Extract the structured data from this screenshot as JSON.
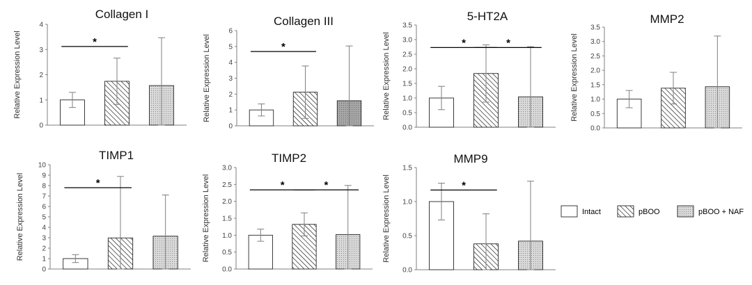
{
  "chart_data": [
    {
      "type": "bar",
      "title": "Collagen I",
      "ylabel": "Relative Expression Level",
      "ylim": [
        0,
        4
      ],
      "ytick_step": 1,
      "tick_decimals": 0,
      "categories": [
        "Intact",
        "pBOO",
        "pBOO + NAF"
      ],
      "values": [
        1.0,
        1.74,
        1.57
      ],
      "errors": [
        0.3,
        0.92,
        1.9
      ],
      "significance": [
        {
          "from": 0,
          "to": 1,
          "label": "*"
        }
      ]
    },
    {
      "type": "bar",
      "title": "Collagen III",
      "ylabel": "Relative Expression Level",
      "ylim": [
        0,
        6
      ],
      "ytick_step": 1,
      "tick_decimals": 0,
      "categories": [
        "Intact",
        "pBOO",
        "pBOO + NAF"
      ],
      "values": [
        1.0,
        2.12,
        1.58
      ],
      "errors": [
        0.38,
        1.65,
        3.45
      ],
      "significance": [
        {
          "from": 0,
          "to": 1,
          "label": "*"
        }
      ]
    },
    {
      "type": "bar",
      "title": "5-HT2A",
      "ylabel": "Relative Expression Level",
      "ylim": [
        0,
        3.5
      ],
      "ytick_step": 0.5,
      "tick_decimals": 1,
      "categories": [
        "Intact",
        "pBOO",
        "pBOO + NAF"
      ],
      "values": [
        1.0,
        1.84,
        1.04
      ],
      "errors": [
        0.4,
        0.98,
        1.72
      ],
      "significance": [
        {
          "from": 0,
          "to": 1,
          "label": "*"
        },
        {
          "from": 1,
          "to": 2,
          "label": "*"
        }
      ]
    },
    {
      "type": "bar",
      "title": "MMP2",
      "ylabel": "Relative Expression Level",
      "ylim": [
        0,
        3.5
      ],
      "ytick_step": 0.5,
      "tick_decimals": 1,
      "categories": [
        "Intact",
        "pBOO",
        "pBOO + NAF"
      ],
      "values": [
        1.0,
        1.38,
        1.43
      ],
      "errors": [
        0.3,
        0.55,
        1.76
      ],
      "significance": []
    },
    {
      "type": "bar",
      "title": "TIMP1",
      "ylabel": "Relative Expression Level",
      "ylim": [
        0,
        10
      ],
      "ytick_step": 1,
      "tick_decimals": 0,
      "categories": [
        "Intact",
        "pBOO",
        "pBOO + NAF"
      ],
      "values": [
        1.0,
        2.98,
        3.15
      ],
      "errors": [
        0.38,
        5.9,
        3.95
      ],
      "significance": [
        {
          "from": 0,
          "to": 1,
          "label": "*"
        }
      ]
    },
    {
      "type": "bar",
      "title": "TIMP2",
      "ylabel": "Relative Expression Level",
      "ylim": [
        0,
        3.0
      ],
      "ytick_step": 0.5,
      "tick_decimals": 1,
      "categories": [
        "Intact",
        "pBOO",
        "pBOO + NAF"
      ],
      "values": [
        1.0,
        1.32,
        1.02
      ],
      "errors": [
        0.18,
        0.34,
        1.45
      ],
      "significance": [
        {
          "from": 0,
          "to": 1,
          "label": "*"
        },
        {
          "from": 1,
          "to": 2,
          "label": "*"
        }
      ]
    },
    {
      "type": "bar",
      "title": "MMP9",
      "ylabel": "Relative Expression Level",
      "ylim": [
        0,
        1.5
      ],
      "ytick_step": 0.5,
      "tick_decimals": 1,
      "categories": [
        "Intact",
        "pBOO",
        "pBOO + NAF"
      ],
      "values": [
        1.0,
        0.38,
        0.42
      ],
      "errors": [
        0.27,
        0.44,
        0.88
      ],
      "significance": [
        {
          "from": 0,
          "to": 1,
          "label": "*"
        }
      ]
    }
  ],
  "legend": {
    "placement": "bottom-right",
    "items": [
      {
        "label": "Intact",
        "fill": "plain"
      },
      {
        "label": "pBOO",
        "fill": "hatched"
      },
      {
        "label": "pBOO + NAF",
        "fill": "dotted"
      }
    ]
  },
  "colors": {
    "intact": "#ffffff",
    "pboo_hatch": "#000000",
    "naf_fill": "#d9d9d9",
    "naf_fill_dark": "#a6a6a6",
    "axis": "#7f7f7f",
    "error_bar": "#7f7f7f"
  }
}
